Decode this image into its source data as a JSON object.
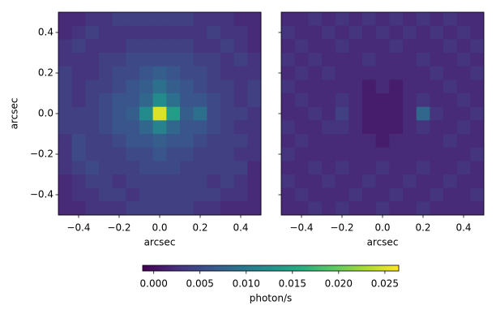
{
  "chart_data": [
    {
      "type": "heatmap",
      "xlabel": "arcsec",
      "ylabel": "arcsec",
      "xlim": [
        -0.5,
        0.5
      ],
      "ylim": [
        -0.5,
        0.5
      ],
      "xticks": [
        {
          "value": -0.4,
          "label": "−0.4"
        },
        {
          "value": -0.2,
          "label": "−0.2"
        },
        {
          "value": 0,
          "label": "0.0"
        },
        0.2,
        0.4
      ],
      "yticks": [
        {
          "value": -0.4,
          "label": "−0.4"
        },
        {
          "value": -0.2,
          "label": "−0.2"
        },
        {
          "value": 0,
          "label": "0.0"
        },
        0.2,
        0.4
      ],
      "ytick_labels": true,
      "z": [
        [
          0.002,
          0.002,
          0.003,
          0.003,
          0.004,
          0.004,
          0.004,
          0.004,
          0.004,
          0.004,
          0.003,
          0.003,
          0.003,
          0.002,
          0.002
        ],
        [
          0.002,
          0.003,
          0.004,
          0.003,
          0.003,
          0.003,
          0.003,
          0.003,
          0.003,
          0.003,
          0.003,
          0.004,
          0.003,
          0.003,
          0.002
        ],
        [
          0.003,
          0.004,
          0.003,
          0.003,
          0.003,
          0.004,
          0.004,
          0.004,
          0.004,
          0.004,
          0.003,
          0.003,
          0.004,
          0.003,
          0.002
        ],
        [
          0.003,
          0.003,
          0.003,
          0.004,
          0.004,
          0.005,
          0.005,
          0.005,
          0.005,
          0.005,
          0.004,
          0.004,
          0.003,
          0.004,
          0.003
        ],
        [
          0.004,
          0.003,
          0.003,
          0.004,
          0.005,
          0.005,
          0.006,
          0.007,
          0.006,
          0.005,
          0.005,
          0.004,
          0.003,
          0.003,
          0.003
        ],
        [
          0.004,
          0.003,
          0.004,
          0.004,
          0.005,
          0.006,
          0.007,
          0.009,
          0.007,
          0.006,
          0.005,
          0.004,
          0.004,
          0.003,
          0.004
        ],
        [
          0.004,
          0.003,
          0.004,
          0.005,
          0.006,
          0.006,
          0.008,
          0.012,
          0.009,
          0.006,
          0.006,
          0.005,
          0.004,
          0.003,
          0.004
        ],
        [
          0.004,
          0.004,
          0.004,
          0.005,
          0.006,
          0.007,
          0.012,
          0.025,
          0.014,
          0.007,
          0.009,
          0.005,
          0.004,
          0.004,
          0.003
        ],
        [
          0.004,
          0.004,
          0.004,
          0.005,
          0.006,
          0.006,
          0.008,
          0.011,
          0.008,
          0.006,
          0.006,
          0.005,
          0.004,
          0.003,
          0.003
        ],
        [
          0.003,
          0.005,
          0.004,
          0.004,
          0.005,
          0.006,
          0.006,
          0.007,
          0.006,
          0.006,
          0.005,
          0.004,
          0.004,
          0.004,
          0.003
        ],
        [
          0.003,
          0.005,
          0.004,
          0.004,
          0.004,
          0.005,
          0.005,
          0.006,
          0.005,
          0.005,
          0.004,
          0.004,
          0.004,
          0.003,
          0.003
        ],
        [
          0.003,
          0.004,
          0.005,
          0.004,
          0.004,
          0.004,
          0.005,
          0.005,
          0.005,
          0.004,
          0.004,
          0.004,
          0.004,
          0.004,
          0.002
        ],
        [
          0.002,
          0.003,
          0.004,
          0.004,
          0.003,
          0.004,
          0.004,
          0.004,
          0.004,
          0.004,
          0.004,
          0.003,
          0.004,
          0.003,
          0.002
        ],
        [
          0.002,
          0.003,
          0.003,
          0.004,
          0.004,
          0.003,
          0.004,
          0.004,
          0.004,
          0.004,
          0.004,
          0.004,
          0.003,
          0.003,
          0.002
        ],
        [
          0.002,
          0.002,
          0.003,
          0.003,
          0.003,
          0.004,
          0.004,
          0.004,
          0.004,
          0.004,
          0.003,
          0.003,
          0.002,
          0.002,
          0.002
        ]
      ]
    },
    {
      "type": "heatmap",
      "xlabel": "arcsec",
      "xlim": [
        -0.5,
        0.5
      ],
      "ylim": [
        -0.5,
        0.5
      ],
      "xticks": [
        {
          "value": -0.4,
          "label": "−0.4"
        },
        {
          "value": -0.2,
          "label": "−0.2"
        },
        {
          "value": 0,
          "label": "0.0"
        },
        0.2,
        0.4
      ],
      "yticks": [
        -0.4,
        -0.2,
        0,
        0.2,
        0.4
      ],
      "ytick_labels": false,
      "z": [
        [
          0.002,
          0.002,
          0.003,
          0.002,
          0.003,
          0.002,
          0.003,
          0.002,
          0.003,
          0.002,
          0.003,
          0.002,
          0.003,
          0.002,
          0.002
        ],
        [
          0.003,
          0.002,
          0.002,
          0.003,
          0.002,
          0.003,
          0.002,
          0.003,
          0.002,
          0.003,
          0.002,
          0.003,
          0.002,
          0.003,
          0.002
        ],
        [
          0.002,
          0.003,
          0.002,
          0.002,
          0.003,
          0.002,
          0.002,
          0.002,
          0.003,
          0.002,
          0.002,
          0.002,
          0.003,
          0.002,
          0.003
        ],
        [
          0.003,
          0.002,
          0.003,
          0.002,
          0.002,
          0.002,
          0.003,
          0.002,
          0.002,
          0.002,
          0.003,
          0.002,
          0.002,
          0.003,
          0.002
        ],
        [
          0.002,
          0.003,
          0.002,
          0.003,
          0.002,
          0.002,
          0.002,
          0.002,
          0.002,
          0.002,
          0.002,
          0.003,
          0.002,
          0.002,
          0.003
        ],
        [
          0.003,
          0.002,
          0.002,
          0.002,
          0.002,
          0.002,
          0.001,
          0.002,
          0.001,
          0.002,
          0.002,
          0.002,
          0.003,
          0.002,
          0.002
        ],
        [
          0.002,
          0.003,
          0.002,
          0.002,
          0.003,
          0.002,
          0.001,
          0.001,
          0.001,
          0.002,
          0.003,
          0.002,
          0.002,
          0.003,
          0.002
        ],
        [
          0.002,
          0.002,
          0.003,
          0.002,
          0.004,
          0.002,
          0.001,
          0.001,
          0.001,
          0.002,
          0.008,
          0.003,
          0.002,
          0.002,
          0.003
        ],
        [
          0.003,
          0.002,
          0.002,
          0.003,
          0.003,
          0.002,
          0.001,
          0.001,
          0.001,
          0.002,
          0.003,
          0.002,
          0.002,
          0.003,
          0.002
        ],
        [
          0.002,
          0.003,
          0.002,
          0.002,
          0.002,
          0.002,
          0.002,
          0.001,
          0.002,
          0.002,
          0.002,
          0.002,
          0.003,
          0.002,
          0.002
        ],
        [
          0.003,
          0.002,
          0.002,
          0.002,
          0.002,
          0.002,
          0.002,
          0.002,
          0.002,
          0.002,
          0.002,
          0.002,
          0.002,
          0.002,
          0.003
        ],
        [
          0.002,
          0.002,
          0.003,
          0.002,
          0.003,
          0.002,
          0.002,
          0.003,
          0.002,
          0.002,
          0.003,
          0.002,
          0.002,
          0.003,
          0.002
        ],
        [
          0.003,
          0.002,
          0.002,
          0.003,
          0.002,
          0.002,
          0.003,
          0.002,
          0.002,
          0.003,
          0.002,
          0.002,
          0.003,
          0.002,
          0.002
        ],
        [
          0.002,
          0.003,
          0.002,
          0.002,
          0.002,
          0.003,
          0.002,
          0.002,
          0.003,
          0.002,
          0.002,
          0.003,
          0.002,
          0.002,
          0.003
        ],
        [
          0.002,
          0.002,
          0.003,
          0.002,
          0.003,
          0.002,
          0.002,
          0.003,
          0.002,
          0.002,
          0.003,
          0.002,
          0.002,
          0.002,
          0.002
        ]
      ]
    },
    {
      "type": "colorbar",
      "label": "photon/s",
      "colormap": "viridis",
      "lim": [
        -0.0012,
        0.0265
      ],
      "ticks": [
        {
          "value": 0,
          "label": "0.000"
        },
        {
          "value": 0.005,
          "label": "0.005"
        },
        {
          "value": 0.01,
          "label": "0.010"
        },
        {
          "value": 0.015,
          "label": "0.015"
        },
        {
          "value": 0.02,
          "label": "0.020"
        },
        {
          "value": 0.025,
          "label": "0.025"
        }
      ]
    }
  ]
}
